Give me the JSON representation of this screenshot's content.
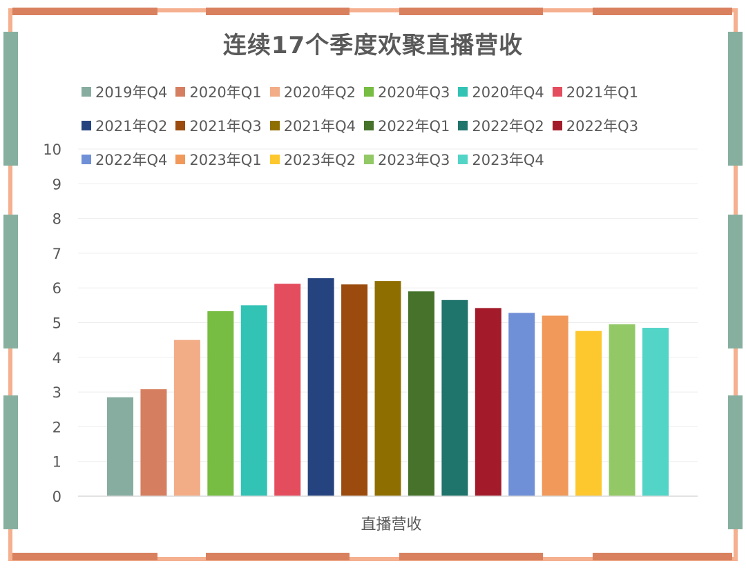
{
  "chart_data": {
    "type": "bar",
    "title": "连续17个季度欢聚直播营收",
    "xlabel": "直播营收",
    "ylabel": "",
    "ylim": [
      0,
      10
    ],
    "yticks": [
      "0",
      "1",
      "2",
      "3",
      "4",
      "5",
      "6",
      "7",
      "8",
      "9",
      "10"
    ],
    "grid": true,
    "legend_position": "top",
    "series": [
      {
        "name": "2019年Q4",
        "values": [
          2.85
        ],
        "color": "#87ADA0"
      },
      {
        "name": "2020年Q1",
        "values": [
          3.08
        ],
        "color": "#D67F60"
      },
      {
        "name": "2020年Q2",
        "values": [
          4.5
        ],
        "color": "#F2AD86"
      },
      {
        "name": "2020年Q3",
        "values": [
          5.33
        ],
        "color": "#77BC43"
      },
      {
        "name": "2020年Q4",
        "values": [
          5.5
        ],
        "color": "#32C3B5"
      },
      {
        "name": "2021年Q1",
        "values": [
          6.12
        ],
        "color": "#E44D5E"
      },
      {
        "name": "2021年Q2",
        "values": [
          6.28
        ],
        "color": "#25437F"
      },
      {
        "name": "2021年Q3",
        "values": [
          6.1
        ],
        "color": "#9A4B0D"
      },
      {
        "name": "2021年Q4",
        "values": [
          6.2
        ],
        "color": "#8F6E00"
      },
      {
        "name": "2022年Q1",
        "values": [
          5.9
        ],
        "color": "#46722B"
      },
      {
        "name": "2022年Q2",
        "values": [
          5.65
        ],
        "color": "#1F746B"
      },
      {
        "name": "2022年Q3",
        "values": [
          5.42
        ],
        "color": "#A31B2A"
      },
      {
        "name": "2022年Q4",
        "values": [
          5.28
        ],
        "color": "#6F8FD6"
      },
      {
        "name": "2023年Q1",
        "values": [
          5.2
        ],
        "color": "#F0995B"
      },
      {
        "name": "2023年Q2",
        "values": [
          4.76
        ],
        "color": "#FDC82E"
      },
      {
        "name": "2023年Q3",
        "values": [
          4.95
        ],
        "color": "#92C865"
      },
      {
        "name": "2023年Q4",
        "values": [
          4.85
        ],
        "color": "#52D4C7"
      }
    ]
  },
  "frame_colors": {
    "dark_orange": "#D9805F",
    "light_orange": "#F5B08F",
    "teal": "#87AF9F"
  }
}
